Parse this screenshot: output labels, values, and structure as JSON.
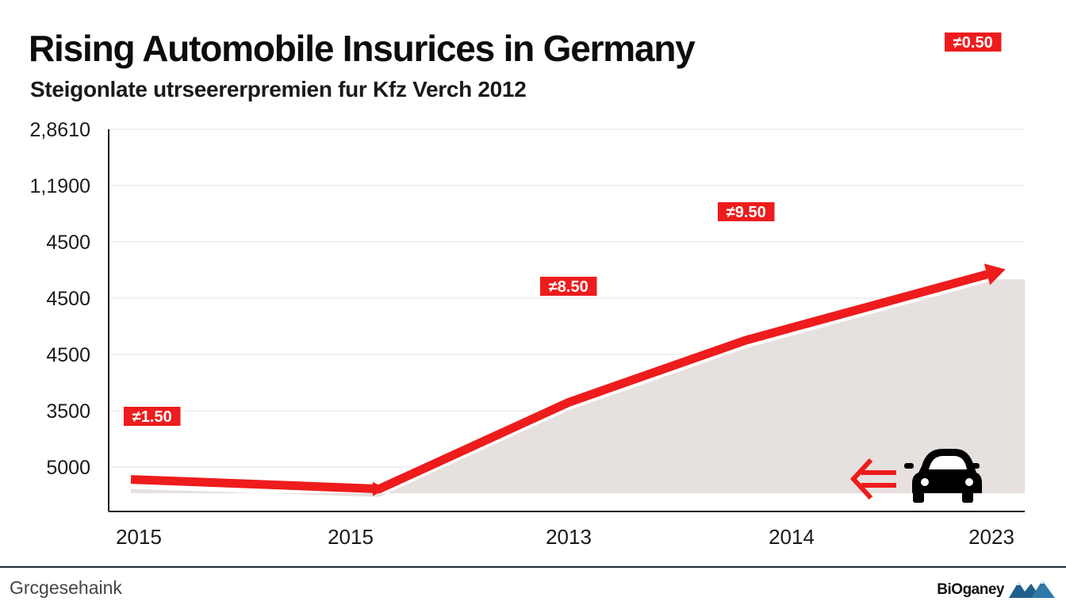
{
  "chart_data": {
    "type": "area",
    "title": "Rising Automobile Insurices in Germany",
    "subtitle": "Steigonlate utrseererpremien fur Kfz Verch 2012",
    "y_tick_labels": [
      "2,8610",
      "1,1900",
      "4500",
      "4500",
      "4500",
      "3500",
      "5000"
    ],
    "x_tick_labels": [
      "2015",
      "2015",
      "2013",
      "2014",
      "2023"
    ],
    "series": [
      {
        "color": "#ee1c1c",
        "values": [
          0.47,
          0.33,
          1.6,
          2.51,
          3.52
        ],
        "point_labels": [
          "≠1.50",
          "",
          "≠8.50",
          "≠9.50",
          "≠0.50"
        ]
      }
    ],
    "y_scale": [
      0,
      6.5
    ],
    "area_fill": "#e6e0de",
    "grid": true
  },
  "icons": {
    "car": "car-icon",
    "arrow": "double-arrow-left-icon",
    "logo": "mountain-logo-icon"
  },
  "footer": {
    "left_text": "Grcgesehaink",
    "brand": "BiOganey"
  }
}
